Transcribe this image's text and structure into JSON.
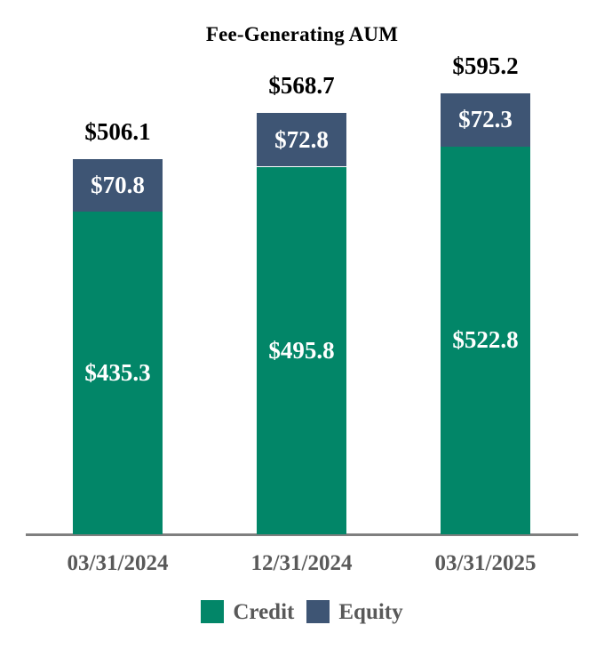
{
  "chart_data": {
    "type": "bar",
    "variant": "stacked-column",
    "title": "Fee-Generating AUM",
    "categories": [
      "03/31/2024",
      "12/31/2024",
      "03/31/2025"
    ],
    "series": [
      {
        "name": "Credit",
        "color": "#028668",
        "values": [
          435.3,
          495.8,
          522.8
        ],
        "labels": [
          "$435.3",
          "$495.8",
          "$522.8"
        ],
        "label_color": "#ffffff"
      },
      {
        "name": "Equity",
        "color": "#3E5574",
        "values": [
          70.8,
          72.8,
          72.3
        ],
        "labels": [
          "$70.8",
          "$72.8",
          "$72.3"
        ],
        "label_color": "#ffffff"
      }
    ],
    "totals": {
      "values": [
        506.1,
        568.7,
        595.2
      ],
      "labels": [
        "$506.1",
        "$568.7",
        "$595.2"
      ],
      "label_color": "#000000"
    },
    "ylim": [
      0,
      640
    ],
    "grid": "off",
    "legend_position": "bottom",
    "axis_line_color": "#7F7F7F",
    "category_label_color": "#595959",
    "legend": [
      "Credit",
      "Equity"
    ]
  }
}
